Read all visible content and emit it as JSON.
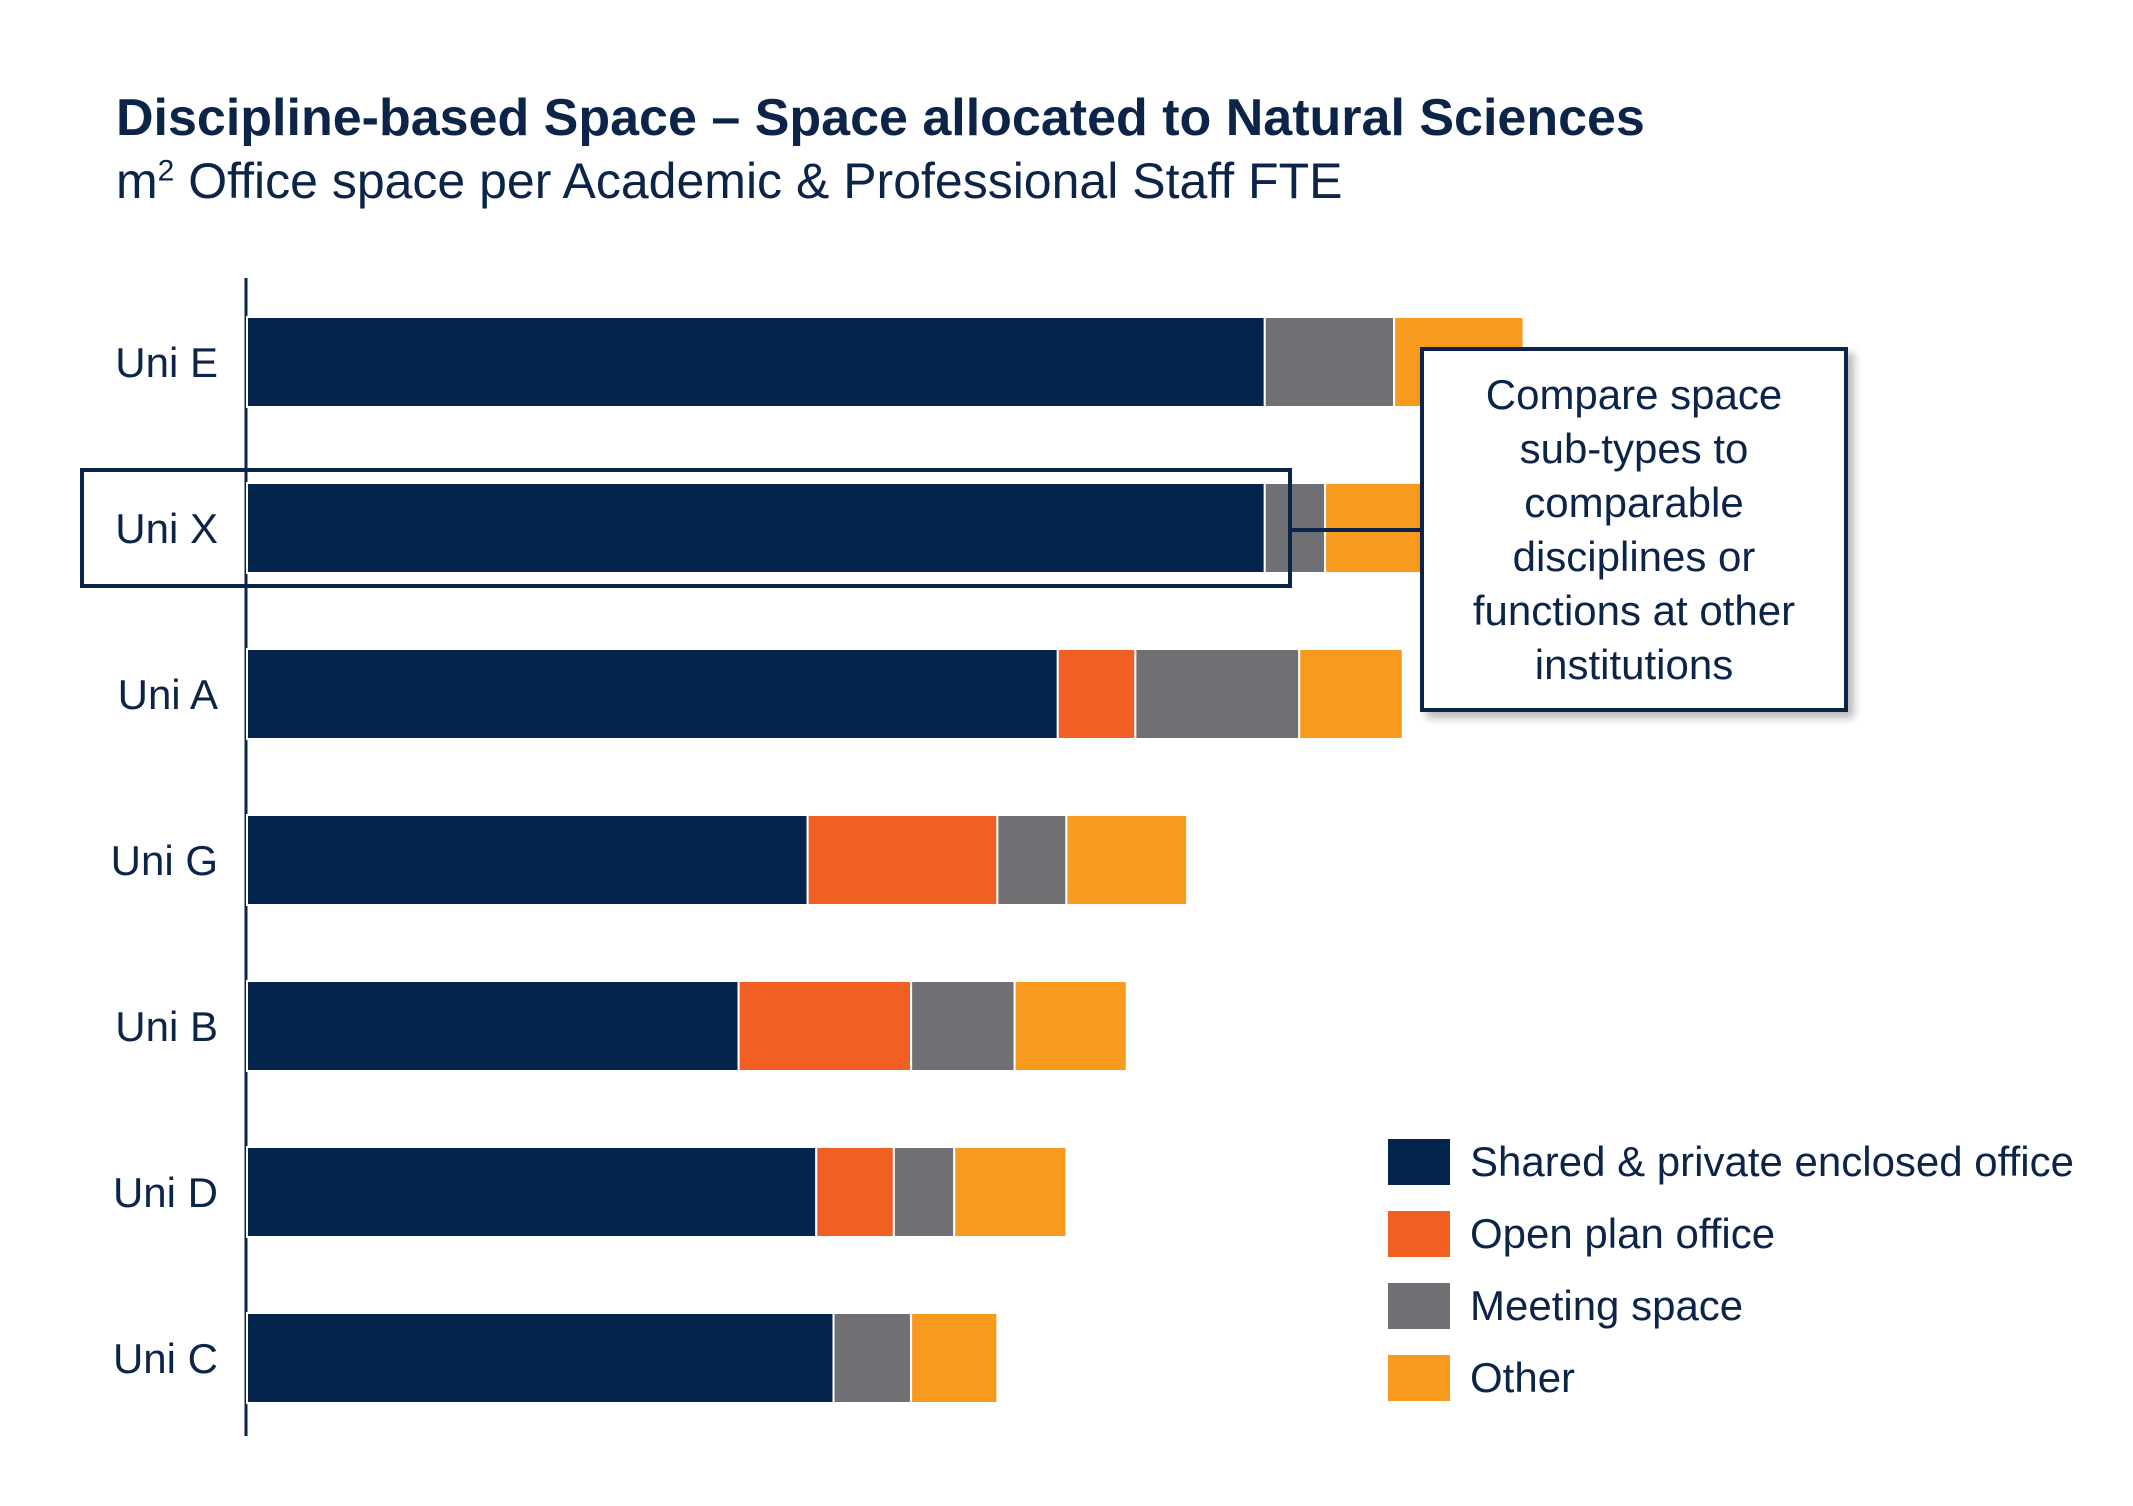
{
  "chart_data": {
    "type": "bar",
    "orientation": "horizontal",
    "stacked": true,
    "title": "Discipline-based Space – Space allocated to Natural Sciences",
    "subtitle": {
      "prefix": "m",
      "superscript": "2",
      "text": " Office space per Academic & Professional Staff FTE"
    },
    "categories": [
      "Uni E",
      "Uni X",
      "Uni A",
      "Uni G",
      "Uni B",
      "Uni D",
      "Uni C"
    ],
    "highlighted_category": "Uni X",
    "series": [
      {
        "name": "Shared & private enclosed office",
        "color": "#03254c",
        "values": [
          11.8,
          11.8,
          9.4,
          6.5,
          5.7,
          6.6,
          6.8
        ]
      },
      {
        "name": "Open plan office",
        "color": "#f15f22",
        "values": [
          0,
          0,
          0.9,
          2.2,
          2.0,
          0.9,
          0
        ]
      },
      {
        "name": "Meeting space",
        "color": "#6f6f74",
        "values": [
          1.5,
          0.7,
          1.9,
          0.8,
          1.2,
          0.7,
          0.9
        ]
      },
      {
        "name": "Other",
        "color": "#f79a1e",
        "values": [
          1.5,
          1.4,
          1.2,
          1.4,
          1.3,
          1.3,
          1.0
        ]
      }
    ],
    "xlim": [
      0,
      16
    ],
    "value_axis_labels": false,
    "grid": false,
    "legend_position": "bottom-right",
    "annotation": {
      "text": "Compare space sub-types to comparable disciplines or functions at other institutions",
      "target": "Uni X"
    }
  }
}
